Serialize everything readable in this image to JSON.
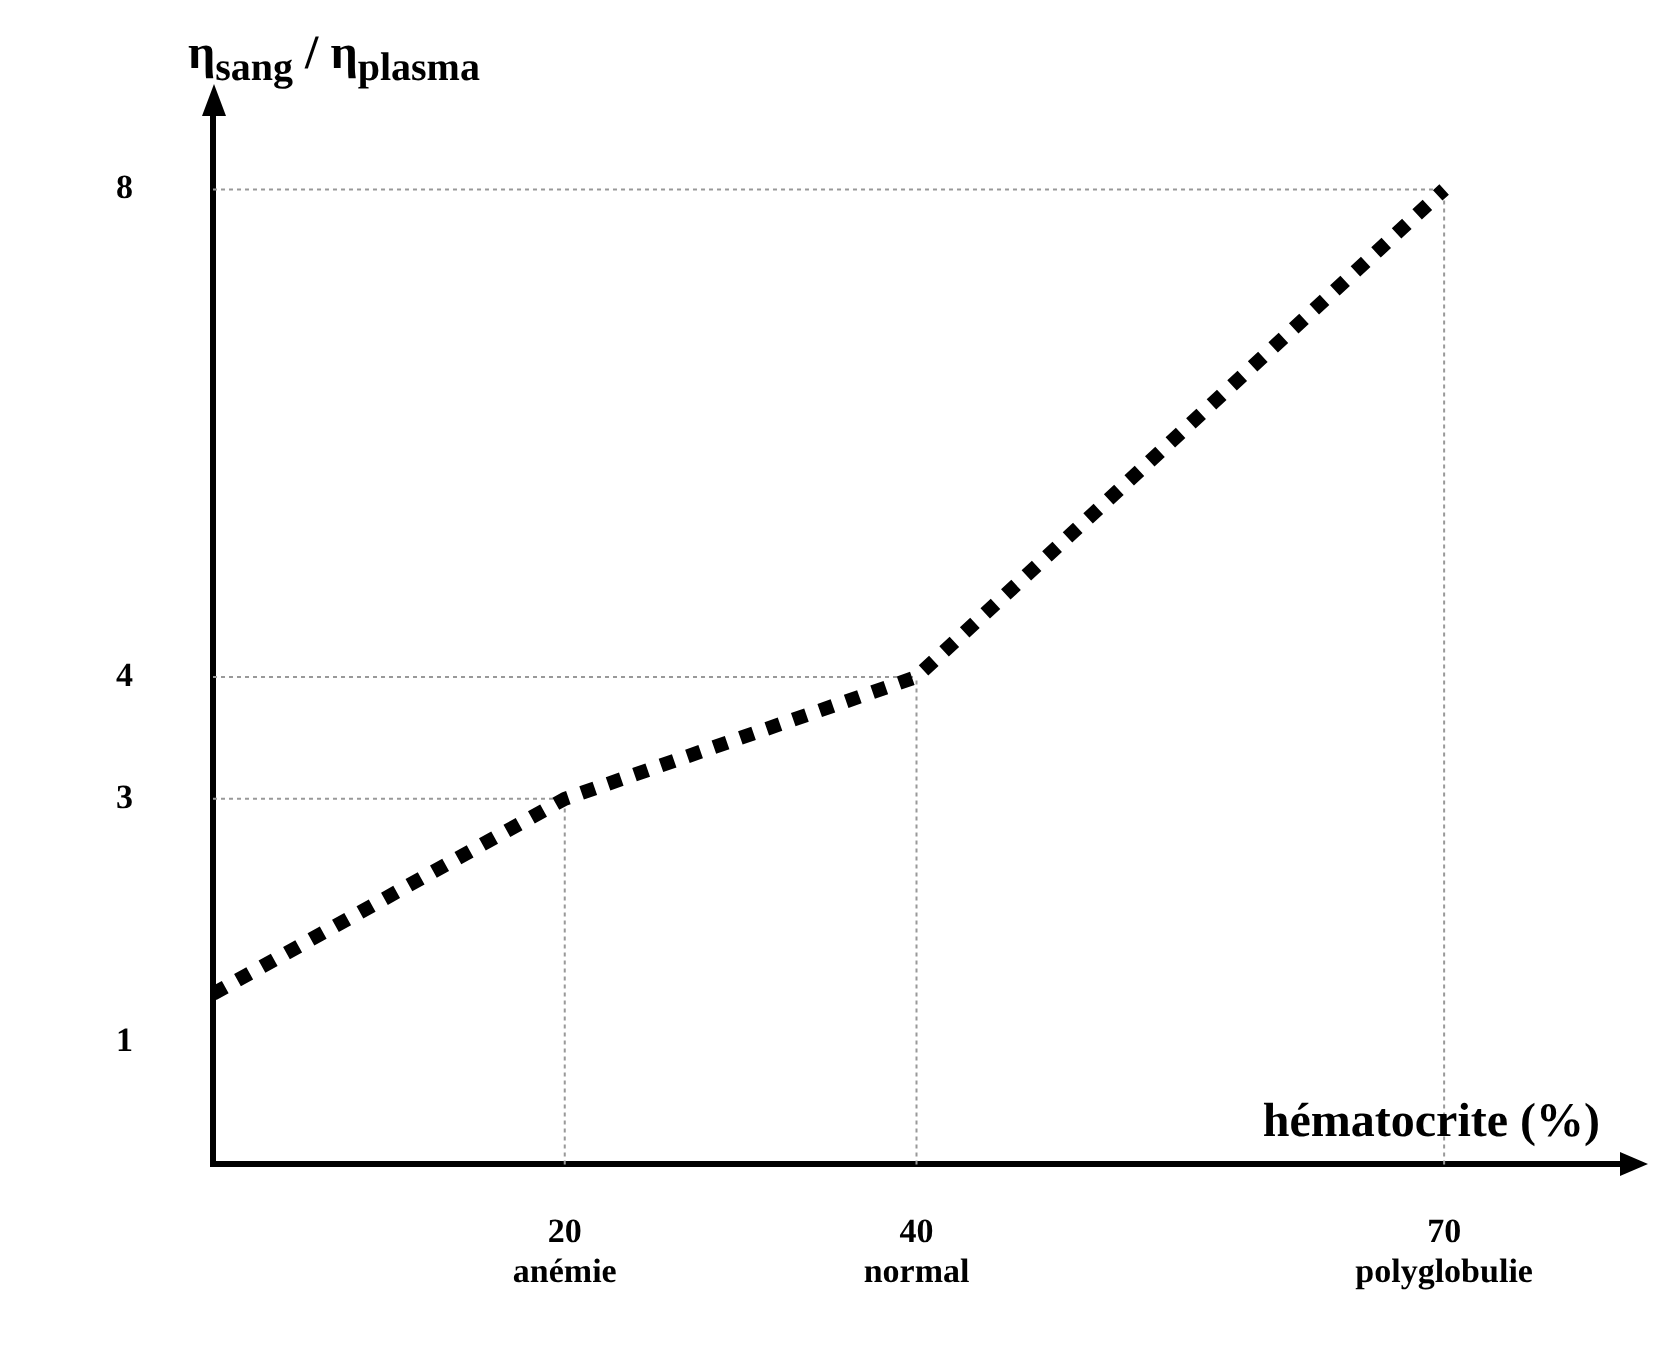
{
  "chart_data": {
    "type": "line",
    "xlabel": "hématocrite (%)",
    "ylabel": "η$_{sang}$ / η$_{plasma}$",
    "x": [
      0,
      20,
      40,
      70
    ],
    "series": [
      {
        "color": "#000000",
        "values": [
          1.4,
          3,
          4,
          8
        ]
      }
    ],
    "xlim": [
      0,
      80
    ],
    "xticks": [
      {
        "value": 20,
        "label": "20\nanémie"
      },
      {
        "value": 40,
        "label": "40\nnormal"
      },
      {
        "value": 70,
        "label": "70\npolyglobulie"
      }
    ],
    "ylim": [
      0,
      8.6
    ],
    "yticks": [
      1,
      3,
      4,
      8
    ],
    "ref_lines": [
      {
        "axis": "x",
        "value": 20,
        "color": "#999999",
        "line_style": "dotted"
      },
      {
        "axis": "x",
        "value": 40,
        "color": "#999999",
        "line_style": "dotted"
      },
      {
        "axis": "x",
        "value": 70,
        "color": "#999999",
        "line_style": "dotted"
      },
      {
        "axis": "y",
        "value": 3,
        "color": "#999999",
        "line_style": "dotted"
      },
      {
        "axis": "y",
        "value": 4,
        "color": "#999999",
        "line_style": "dotted"
      },
      {
        "axis": "y",
        "value": 8,
        "color": "#999999",
        "line_style": "dotted"
      }
    ],
    "grid": false,
    "legend": false,
    "marker": "none",
    "line_style": "dotted"
  }
}
